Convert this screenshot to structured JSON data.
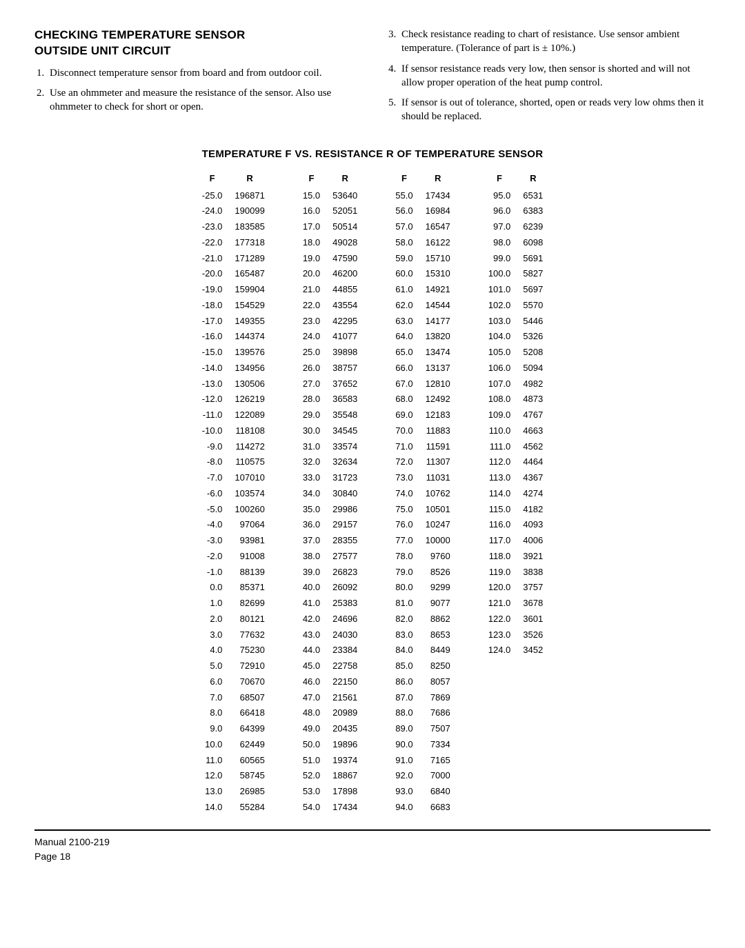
{
  "left": {
    "heading1": "CHECKING TEMPERATURE SENSOR",
    "heading2": "OUTSIDE UNIT CIRCUIT",
    "steps": [
      "Disconnect temperature sensor from board and from outdoor coil.",
      "Use an ohmmeter and measure the resistance of the sensor.  Also use ohmmeter to check for short or open."
    ]
  },
  "right": {
    "steps": [
      "Check resistance reading to chart of resistance.  Use sensor ambient temperature.  (Tolerance of part is ± 10%.)",
      "If sensor resistance reads very low, then sensor is shorted and will not allow proper operation of the heat pump control.",
      "If sensor is out of tolerance, shorted, open or reads very low ohms then it should be replaced."
    ]
  },
  "table_title": "TEMPERATURE  F  VS.  RESISTANCE  R  OF TEMPERATURE SENSOR",
  "headers": {
    "f": "F",
    "r": "R"
  },
  "columns": [
    [
      {
        "f": "-25.0",
        "r": "196871"
      },
      {
        "f": "-24.0",
        "r": "190099"
      },
      {
        "f": "-23.0",
        "r": "183585"
      },
      {
        "f": "-22.0",
        "r": "177318"
      },
      {
        "f": "-21.0",
        "r": "171289"
      },
      {
        "f": "-20.0",
        "r": "165487"
      },
      {
        "f": "-19.0",
        "r": "159904"
      },
      {
        "f": "-18.0",
        "r": "154529"
      },
      {
        "f": "-17.0",
        "r": "149355"
      },
      {
        "f": "-16.0",
        "r": "144374"
      },
      {
        "f": "-15.0",
        "r": "139576"
      },
      {
        "f": "-14.0",
        "r": "134956"
      },
      {
        "f": "-13.0",
        "r": "130506"
      },
      {
        "f": "-12.0",
        "r": "126219"
      },
      {
        "f": "-11.0",
        "r": "122089"
      },
      {
        "f": "-10.0",
        "r": "118108"
      },
      {
        "f": "-9.0",
        "r": "114272"
      },
      {
        "f": "-8.0",
        "r": "110575"
      },
      {
        "f": "-7.0",
        "r": "107010"
      },
      {
        "f": "-6.0",
        "r": "103574"
      },
      {
        "f": "-5.0",
        "r": "100260"
      },
      {
        "f": "-4.0",
        "r": "97064"
      },
      {
        "f": "-3.0",
        "r": "93981"
      },
      {
        "f": "-2.0",
        "r": "91008"
      },
      {
        "f": "-1.0",
        "r": "88139"
      },
      {
        "f": "0.0",
        "r": "85371"
      },
      {
        "f": "1.0",
        "r": "82699"
      },
      {
        "f": "2.0",
        "r": "80121"
      },
      {
        "f": "3.0",
        "r": "77632"
      },
      {
        "f": "4.0",
        "r": "75230"
      },
      {
        "f": "5.0",
        "r": "72910"
      },
      {
        "f": "6.0",
        "r": "70670"
      },
      {
        "f": "7.0",
        "r": "68507"
      },
      {
        "f": "8.0",
        "r": "66418"
      },
      {
        "f": "9.0",
        "r": "64399"
      },
      {
        "f": "10.0",
        "r": "62449"
      },
      {
        "f": "11.0",
        "r": "60565"
      },
      {
        "f": "12.0",
        "r": "58745"
      },
      {
        "f": "13.0",
        "r": "26985"
      },
      {
        "f": "14.0",
        "r": "55284"
      }
    ],
    [
      {
        "f": "15.0",
        "r": "53640"
      },
      {
        "f": "16.0",
        "r": "52051"
      },
      {
        "f": "17.0",
        "r": "50514"
      },
      {
        "f": "18.0",
        "r": "49028"
      },
      {
        "f": "19.0",
        "r": "47590"
      },
      {
        "f": "20.0",
        "r": "46200"
      },
      {
        "f": "21.0",
        "r": "44855"
      },
      {
        "f": "22.0",
        "r": "43554"
      },
      {
        "f": "23.0",
        "r": "42295"
      },
      {
        "f": "24.0",
        "r": "41077"
      },
      {
        "f": "25.0",
        "r": "39898"
      },
      {
        "f": "26.0",
        "r": "38757"
      },
      {
        "f": "27.0",
        "r": "37652"
      },
      {
        "f": "28.0",
        "r": "36583"
      },
      {
        "f": "29.0",
        "r": "35548"
      },
      {
        "f": "30.0",
        "r": "34545"
      },
      {
        "f": "31.0",
        "r": "33574"
      },
      {
        "f": "32.0",
        "r": "32634"
      },
      {
        "f": "33.0",
        "r": "31723"
      },
      {
        "f": "34.0",
        "r": "30840"
      },
      {
        "f": "35.0",
        "r": "29986"
      },
      {
        "f": "36.0",
        "r": "29157"
      },
      {
        "f": "37.0",
        "r": "28355"
      },
      {
        "f": "38.0",
        "r": "27577"
      },
      {
        "f": "39.0",
        "r": "26823"
      },
      {
        "f": "40.0",
        "r": "26092"
      },
      {
        "f": "41.0",
        "r": "25383"
      },
      {
        "f": "42.0",
        "r": "24696"
      },
      {
        "f": "43.0",
        "r": "24030"
      },
      {
        "f": "44.0",
        "r": "23384"
      },
      {
        "f": "45.0",
        "r": "22758"
      },
      {
        "f": "46.0",
        "r": "22150"
      },
      {
        "f": "47.0",
        "r": "21561"
      },
      {
        "f": "48.0",
        "r": "20989"
      },
      {
        "f": "49.0",
        "r": "20435"
      },
      {
        "f": "50.0",
        "r": "19896"
      },
      {
        "f": "51.0",
        "r": "19374"
      },
      {
        "f": "52.0",
        "r": "18867"
      },
      {
        "f": "53.0",
        "r": "17898"
      },
      {
        "f": "54.0",
        "r": "17434"
      }
    ],
    [
      {
        "f": "55.0",
        "r": "17434"
      },
      {
        "f": "56.0",
        "r": "16984"
      },
      {
        "f": "57.0",
        "r": "16547"
      },
      {
        "f": "58.0",
        "r": "16122"
      },
      {
        "f": "59.0",
        "r": "15710"
      },
      {
        "f": "60.0",
        "r": "15310"
      },
      {
        "f": "61.0",
        "r": "14921"
      },
      {
        "f": "62.0",
        "r": "14544"
      },
      {
        "f": "63.0",
        "r": "14177"
      },
      {
        "f": "64.0",
        "r": "13820"
      },
      {
        "f": "65.0",
        "r": "13474"
      },
      {
        "f": "66.0",
        "r": "13137"
      },
      {
        "f": "67.0",
        "r": "12810"
      },
      {
        "f": "68.0",
        "r": "12492"
      },
      {
        "f": "69.0",
        "r": "12183"
      },
      {
        "f": "70.0",
        "r": "11883"
      },
      {
        "f": "71.0",
        "r": "11591"
      },
      {
        "f": "72.0",
        "r": "11307"
      },
      {
        "f": "73.0",
        "r": "11031"
      },
      {
        "f": "74.0",
        "r": "10762"
      },
      {
        "f": "75.0",
        "r": "10501"
      },
      {
        "f": "76.0",
        "r": "10247"
      },
      {
        "f": "77.0",
        "r": "10000"
      },
      {
        "f": "78.0",
        "r": "9760"
      },
      {
        "f": "79.0",
        "r": "8526"
      },
      {
        "f": "80.0",
        "r": "9299"
      },
      {
        "f": "81.0",
        "r": "9077"
      },
      {
        "f": "82.0",
        "r": "8862"
      },
      {
        "f": "83.0",
        "r": "8653"
      },
      {
        "f": "84.0",
        "r": "8449"
      },
      {
        "f": "85.0",
        "r": "8250"
      },
      {
        "f": "86.0",
        "r": "8057"
      },
      {
        "f": "87.0",
        "r": "7869"
      },
      {
        "f": "88.0",
        "r": "7686"
      },
      {
        "f": "89.0",
        "r": "7507"
      },
      {
        "f": "90.0",
        "r": "7334"
      },
      {
        "f": "91.0",
        "r": "7165"
      },
      {
        "f": "92.0",
        "r": "7000"
      },
      {
        "f": "93.0",
        "r": "6840"
      },
      {
        "f": "94.0",
        "r": "6683"
      }
    ],
    [
      {
        "f": "95.0",
        "r": "6531"
      },
      {
        "f": "96.0",
        "r": "6383"
      },
      {
        "f": "97.0",
        "r": "6239"
      },
      {
        "f": "98.0",
        "r": "6098"
      },
      {
        "f": "99.0",
        "r": "5691"
      },
      {
        "f": "100.0",
        "r": "5827"
      },
      {
        "f": "101.0",
        "r": "5697"
      },
      {
        "f": "102.0",
        "r": "5570"
      },
      {
        "f": "103.0",
        "r": "5446"
      },
      {
        "f": "104.0",
        "r": "5326"
      },
      {
        "f": "105.0",
        "r": "5208"
      },
      {
        "f": "106.0",
        "r": "5094"
      },
      {
        "f": "107.0",
        "r": "4982"
      },
      {
        "f": "108.0",
        "r": "4873"
      },
      {
        "f": "109.0",
        "r": "4767"
      },
      {
        "f": "110.0",
        "r": "4663"
      },
      {
        "f": "111.0",
        "r": "4562"
      },
      {
        "f": "112.0",
        "r": "4464"
      },
      {
        "f": "113.0",
        "r": "4367"
      },
      {
        "f": "114.0",
        "r": "4274"
      },
      {
        "f": "115.0",
        "r": "4182"
      },
      {
        "f": "116.0",
        "r": "4093"
      },
      {
        "f": "117.0",
        "r": "4006"
      },
      {
        "f": "118.0",
        "r": "3921"
      },
      {
        "f": "119.0",
        "r": "3838"
      },
      {
        "f": "120.0",
        "r": "3757"
      },
      {
        "f": "121.0",
        "r": "3678"
      },
      {
        "f": "122.0",
        "r": "3601"
      },
      {
        "f": "123.0",
        "r": "3526"
      },
      {
        "f": "124.0",
        "r": "3452"
      }
    ]
  ],
  "footer": {
    "manual": "Manual   2100-219",
    "page": "Page   18"
  }
}
